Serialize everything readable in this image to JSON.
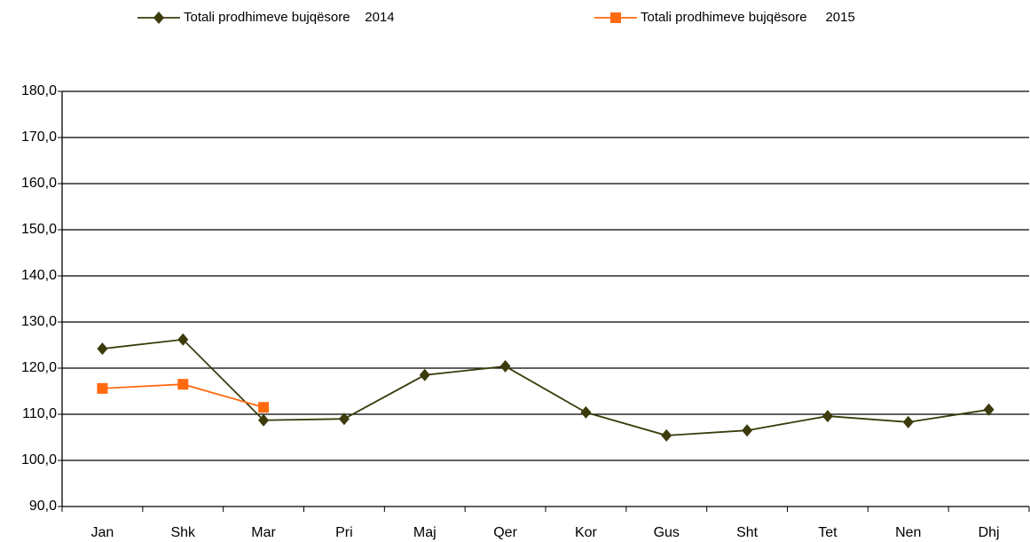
{
  "chart_data": {
    "type": "line",
    "categories": [
      "Jan",
      "Shk",
      "Mar",
      "Pri",
      "Maj",
      "Qer",
      "Kor",
      "Gus",
      "Sht",
      "Tet",
      "Nen",
      "Dhj"
    ],
    "series": [
      {
        "name": "Totali prodhimeve bujqësore    2014",
        "color": "#3b3b0c",
        "marker": "diamond",
        "values": [
          124.2,
          126.2,
          108.7,
          109.0,
          118.5,
          120.4,
          110.4,
          105.4,
          106.5,
          109.6,
          108.3,
          111.0
        ]
      },
      {
        "name": "Totali prodhimeve bujqësore     2015",
        "color": "#ff6a10",
        "marker": "square",
        "values": [
          115.6,
          116.5,
          111.5,
          null,
          null,
          null,
          null,
          null,
          null,
          null,
          null,
          null
        ]
      }
    ],
    "ylim": [
      90,
      180
    ],
    "yticks": [
      {
        "value": 90,
        "label": "90,0"
      },
      {
        "value": 100,
        "label": "100,0"
      },
      {
        "value": 110,
        "label": "110,0"
      },
      {
        "value": 120,
        "label": "120,0"
      },
      {
        "value": 130,
        "label": "130,0"
      },
      {
        "value": 140,
        "label": "140,0"
      },
      {
        "value": 150,
        "label": "150,0"
      },
      {
        "value": 160,
        "label": "160,0"
      },
      {
        "value": 170,
        "label": "170,0"
      },
      {
        "value": 180,
        "label": "180,0"
      }
    ],
    "grid": true,
    "legend": "top"
  }
}
